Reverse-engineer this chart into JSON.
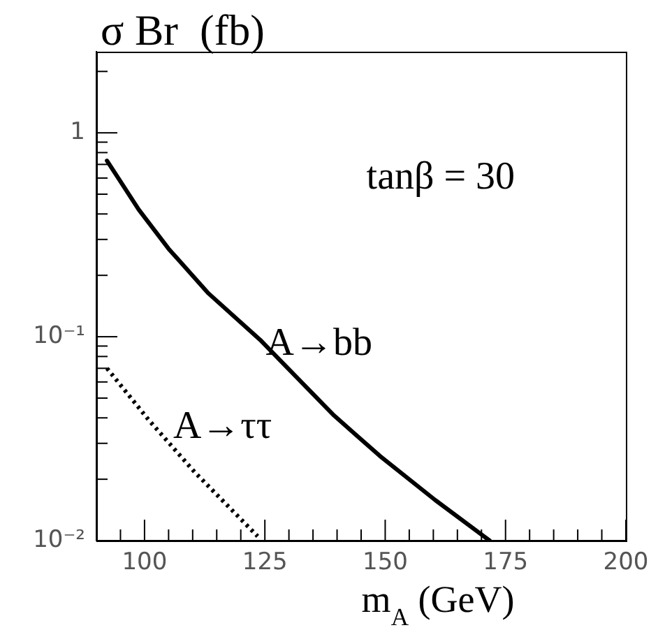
{
  "chart_data": {
    "type": "line",
    "title": "σ Br  (fb)",
    "xlabel": "m$_{A}$ (GeV)",
    "log": "y",
    "grid": false,
    "legend": false,
    "marker": "none",
    "xlim": [
      90,
      200
    ],
    "xticks": [
      {
        "value": 95,
        "label": null
      },
      100,
      {
        "value": 105,
        "label": null
      },
      {
        "value": 110,
        "label": null
      },
      {
        "value": 115,
        "label": null
      },
      {
        "value": 120,
        "label": null
      },
      125,
      {
        "value": 130,
        "label": null
      },
      {
        "value": 135,
        "label": null
      },
      {
        "value": 140,
        "label": null
      },
      {
        "value": 145,
        "label": null
      },
      150,
      {
        "value": 155,
        "label": null
      },
      {
        "value": 160,
        "label": null
      },
      {
        "value": 165,
        "label": null
      },
      {
        "value": 170,
        "label": null
      },
      175,
      {
        "value": 180,
        "label": null
      },
      {
        "value": 185,
        "label": null
      },
      {
        "value": 190,
        "label": null
      },
      {
        "value": 195,
        "label": null
      },
      200
    ],
    "ylim": [
      0.01,
      2.5
    ],
    "yticks": [
      {
        "value": 0.01,
        "label": "10⁻²"
      },
      {
        "value": 0.02,
        "label": null
      },
      {
        "value": 0.03,
        "label": null
      },
      {
        "value": 0.04,
        "label": null
      },
      {
        "value": 0.05,
        "label": null
      },
      {
        "value": 0.06,
        "label": null
      },
      {
        "value": 0.07,
        "label": null
      },
      {
        "value": 0.08,
        "label": null
      },
      {
        "value": 0.09,
        "label": null
      },
      {
        "value": 0.1,
        "label": "10⁻¹"
      },
      {
        "value": 0.2,
        "label": null
      },
      {
        "value": 0.3,
        "label": null
      },
      {
        "value": 0.4,
        "label": null
      },
      {
        "value": 0.5,
        "label": null
      },
      {
        "value": 0.6,
        "label": null
      },
      {
        "value": 0.7,
        "label": null
      },
      {
        "value": 0.8,
        "label": null
      },
      {
        "value": 0.9,
        "label": null
      },
      1,
      {
        "value": 2,
        "label": null
      }
    ],
    "series": [
      {
        "color": "#000000",
        "line_style": "solid",
        "x": [
          92.2,
          98.8,
          105,
          113.3,
          124,
          139.4,
          148.9,
          160.4,
          171.7
        ],
        "values": [
          0.73,
          0.42,
          0.27,
          0.163,
          0.0966,
          0.041,
          0.026,
          0.0158,
          0.01
        ]
      },
      {
        "color": "#000000",
        "line_style": "dotted",
        "x": [
          92.2,
          100.9,
          110.4,
          123.5
        ],
        "values": [
          0.07,
          0.039,
          0.0217,
          0.0105
        ]
      }
    ],
    "annotations": [
      "A→bb",
      "A→ττ",
      "tanβ = 30"
    ]
  }
}
